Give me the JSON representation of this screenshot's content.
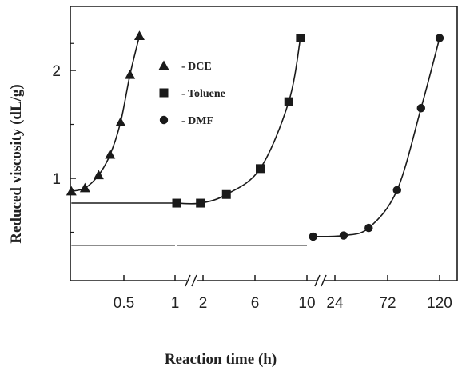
{
  "chart_data": {
    "type": "line",
    "xlabel": "Reaction time (h)",
    "ylabel": "Reduced viscosity (dL/g)",
    "ylim": [
      0.4,
      2.45
    ],
    "y_ticks": [
      "1",
      "2"
    ],
    "grid": false,
    "legend_position": "top-left",
    "x_segments": [
      {
        "ticks": [
          "0.5",
          "1"
        ],
        "range": [
          0,
          1.1
        ]
      },
      {
        "ticks": [
          "2",
          "6",
          "10"
        ],
        "range": [
          1,
          11
        ]
      },
      {
        "ticks": [
          "24",
          "72",
          "120"
        ],
        "range": [
          0,
          130
        ]
      }
    ],
    "series": [
      {
        "name": "DCE",
        "marker": "triangle",
        "segment": 0,
        "x": [
          0.01,
          0.14,
          0.27,
          0.38,
          0.48,
          0.57,
          0.66
        ],
        "y": [
          0.88,
          0.91,
          1.03,
          1.22,
          1.52,
          1.96,
          2.32
        ]
      },
      {
        "name": "Toluene",
        "marker": "square",
        "segment": 1,
        "x": [
          1.0,
          1.9,
          3.8,
          6.4,
          8.6,
          9.5
        ],
        "y": [
          0.77,
          0.77,
          0.85,
          1.09,
          1.71,
          2.3
        ]
      },
      {
        "name": "DMF",
        "marker": "circle",
        "segment": 2,
        "x": [
          4,
          32,
          55,
          81,
          103,
          120
        ],
        "y": [
          0.46,
          0.47,
          0.54,
          0.89,
          1.65,
          2.3
        ]
      }
    ],
    "flat_baselines": [
      {
        "series": "DCE",
        "segment": 0,
        "y": 0.77,
        "x": [
          0.01,
          1.0
        ]
      },
      {
        "series": "DMF",
        "segment": 0,
        "y": 0.38,
        "x": [
          0.01,
          1.0
        ]
      },
      {
        "series": "DMF",
        "segment": 1,
        "y": 0.38,
        "x": [
          1.0,
          10.0
        ]
      }
    ]
  },
  "legend": {
    "items": [
      {
        "label": "- DCE",
        "marker": "triangle"
      },
      {
        "label": "- Toluene",
        "marker": "square"
      },
      {
        "label": "- DMF",
        "marker": "circle"
      }
    ]
  }
}
